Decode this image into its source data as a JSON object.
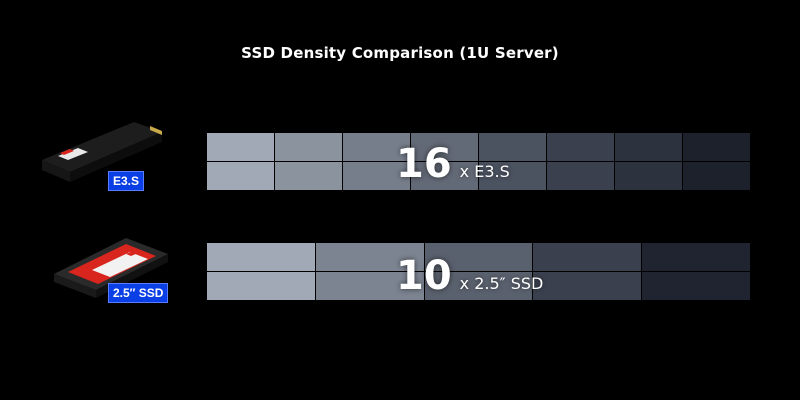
{
  "title": "SSD Density Comparison (1U Server)",
  "rows": [
    {
      "id": "e3s",
      "drive_badge": "E3.S",
      "count": "16",
      "unit_text": "x E3.S",
      "columns": 8,
      "rows": 2,
      "column_colors": [
        "#a1a9b6",
        "#8b939f",
        "#767e8b",
        "#636a77",
        "#4b5260",
        "#3a404d",
        "#2c323e",
        "#1c212c"
      ]
    },
    {
      "id": "ssd25",
      "drive_badge": "2.5″ SSD",
      "count": "10",
      "unit_text": "x 2.5″ SSD",
      "columns": 5,
      "rows": 2,
      "column_colors": [
        "#a1a9b6",
        "#7c8491",
        "#5a616e",
        "#3a404d",
        "#1f2430"
      ]
    }
  ],
  "colors": {
    "background": "#000000",
    "badge": "#0b3fe6",
    "drive_label": "#d8261e"
  }
}
